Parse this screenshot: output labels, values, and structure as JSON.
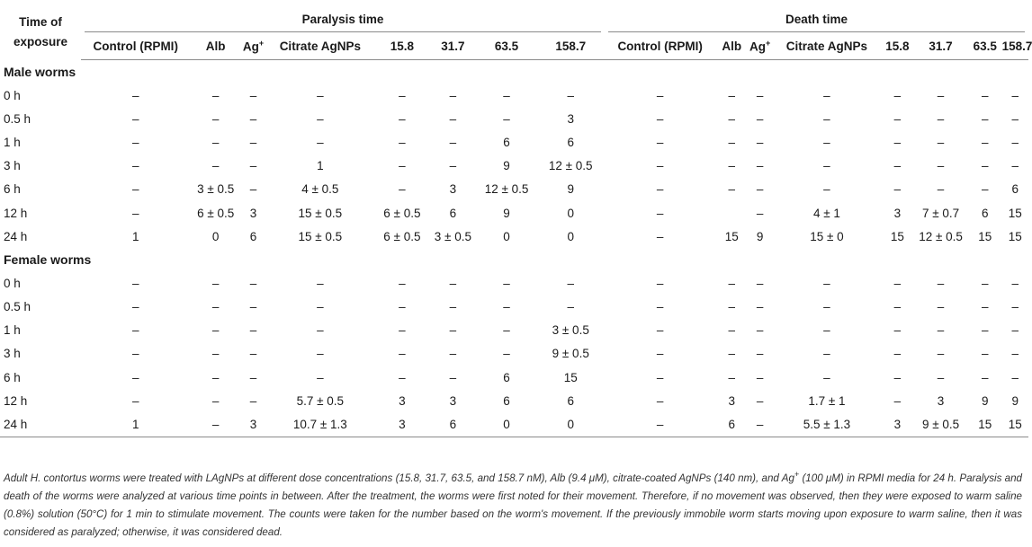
{
  "header": {
    "first_col": "Time of exposure",
    "group1": "Paralysis time",
    "group2": "Death time",
    "paralysis_cols": [
      "Control (RPMI)",
      "Alb",
      "Ag+",
      "Citrate AgNPs",
      "15.8",
      "31.7",
      "63.5",
      "158.7"
    ],
    "death_cols": [
      "Control (RPMI)",
      "Alb",
      "Ag+",
      "Citrate AgNPs",
      "15.8",
      "31.7",
      "63.5",
      "158.7"
    ]
  },
  "sections": [
    {
      "title": "Male worms",
      "rows": [
        {
          "time": "0 h",
          "cells": [
            "–",
            "–",
            "–",
            "–",
            "–",
            "–",
            "–",
            "–",
            "–",
            "–",
            "–",
            "–",
            "–",
            "–",
            "–",
            "–"
          ]
        },
        {
          "time": "0.5 h",
          "cells": [
            "–",
            "–",
            "–",
            "–",
            "–",
            "–",
            "–",
            "3",
            "–",
            "–",
            "–",
            "–",
            "–",
            "–",
            "–",
            "–"
          ]
        },
        {
          "time": "1 h",
          "cells": [
            "–",
            "–",
            "–",
            "–",
            "–",
            "–",
            "6",
            "6",
            "–",
            "–",
            "–",
            "–",
            "–",
            "–",
            "–",
            "–"
          ]
        },
        {
          "time": "3 h",
          "cells": [
            "–",
            "–",
            "–",
            "1",
            "–",
            "–",
            "9",
            "12 ± 0.5",
            "–",
            "–",
            "–",
            "–",
            "–",
            "–",
            "–",
            "–"
          ]
        },
        {
          "time": "6 h",
          "cells": [
            "–",
            "3 ± 0.5",
            "–",
            "4 ± 0.5",
            "–",
            "3",
            "12 ± 0.5",
            "9",
            "–",
            "–",
            "–",
            "–",
            "–",
            "–",
            "–",
            "6"
          ]
        },
        {
          "time": "12 h",
          "cells": [
            "–",
            "6 ± 0.5",
            "3",
            "15 ± 0.5",
            "6 ± 0.5",
            "6",
            "9",
            "0",
            "–",
            "",
            "–",
            "4 ± 1",
            "3",
            "7 ± 0.7",
            "6",
            "15"
          ]
        },
        {
          "time": "24 h",
          "cells": [
            "1",
            "0",
            "6",
            "15 ± 0.5",
            "6 ± 0.5",
            "3 ± 0.5",
            "0",
            "0",
            "–",
            "15",
            "9",
            "15 ± 0",
            "15",
            "12 ± 0.5",
            "15",
            "15"
          ]
        }
      ]
    },
    {
      "title": "Female worms",
      "rows": [
        {
          "time": "0 h",
          "cells": [
            "–",
            "–",
            "–",
            "–",
            "–",
            "–",
            "–",
            "–",
            "–",
            "–",
            "–",
            "–",
            "–",
            "–",
            "–",
            "–"
          ]
        },
        {
          "time": "0.5 h",
          "cells": [
            "–",
            "–",
            "–",
            "–",
            "–",
            "–",
            "–",
            "–",
            "–",
            "–",
            "–",
            "–",
            "–",
            "–",
            "–",
            "–"
          ]
        },
        {
          "time": "1 h",
          "cells": [
            "–",
            "–",
            "–",
            "–",
            "–",
            "–",
            "–",
            "3 ± 0.5",
            "–",
            "–",
            "–",
            "–",
            "–",
            "–",
            "–",
            "–"
          ]
        },
        {
          "time": "3 h",
          "cells": [
            "–",
            "–",
            "–",
            "–",
            "–",
            "–",
            "–",
            "9 ± 0.5",
            "–",
            "–",
            "–",
            "–",
            "–",
            "–",
            "–",
            "–"
          ]
        },
        {
          "time": "6 h",
          "cells": [
            "–",
            "–",
            "–",
            "–",
            "–",
            "–",
            "6",
            "15",
            "–",
            "–",
            "–",
            "–",
            "–",
            "–",
            "–",
            "–"
          ]
        },
        {
          "time": "12 h",
          "cells": [
            "–",
            "–",
            "–",
            "5.7 ± 0.5",
            "3",
            "3",
            "6",
            "6",
            "–",
            "3",
            "–",
            "1.7 ± 1",
            "–",
            "3",
            "9",
            "9"
          ]
        },
        {
          "time": "24 h",
          "cells": [
            "1",
            "–",
            "3",
            "10.7 ± 1.3",
            "3",
            "6",
            "0",
            "0",
            "–",
            "6",
            "–",
            "5.5 ± 1.3",
            "3",
            "9 ± 0.5",
            "15",
            "15"
          ]
        }
      ]
    }
  ],
  "footnote": "Adult H. contortus worms were treated with LAgNPs at different dose concentrations (15.8, 31.7, 63.5, and 158.7 nM), Alb (9.4 μM), citrate-coated AgNPs (140 nm), and Ag+ (100 μM) in RPMI media for 24 h. Paralysis and death of the worms were analyzed at various time points in between. After the treatment, the worms were first noted for their movement. Therefore, if no movement was observed, then they were exposed to warm saline (0.8%) solution (50°C) for 1 min to stimulate movement. The counts were taken for the number based on the worm's movement. If the previously immobile worm starts moving upon exposure to warm saline, then it was considered as paralyzed; otherwise, it was considered dead."
}
